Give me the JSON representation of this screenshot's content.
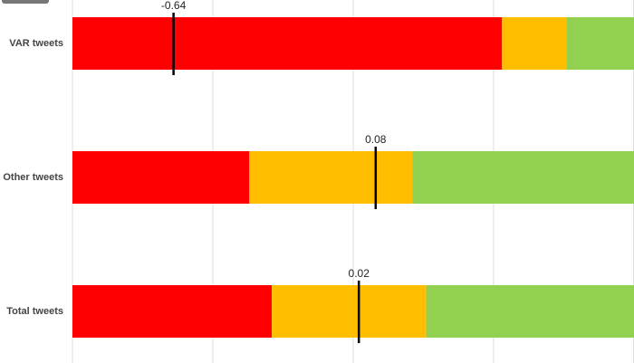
{
  "chart_data": {
    "type": "bullet",
    "categories": [
      "VAR tweets",
      "Other tweets",
      "Total tweets"
    ],
    "series": [
      {
        "color": "#ff0000",
        "values": [
          1.53,
          0.63,
          0.71
        ]
      },
      {
        "color": "#ffbf00",
        "values": [
          0.23,
          0.58,
          0.55
        ]
      },
      {
        "color": "#92d050",
        "values": [
          0.24,
          0.79,
          0.74
        ]
      }
    ],
    "markers": [
      -0.64,
      0.08,
      0.02
    ],
    "xlim": [
      -1,
      1
    ],
    "xticks": [
      -1,
      -0.5,
      0,
      0.5,
      1
    ],
    "grid": true
  }
}
